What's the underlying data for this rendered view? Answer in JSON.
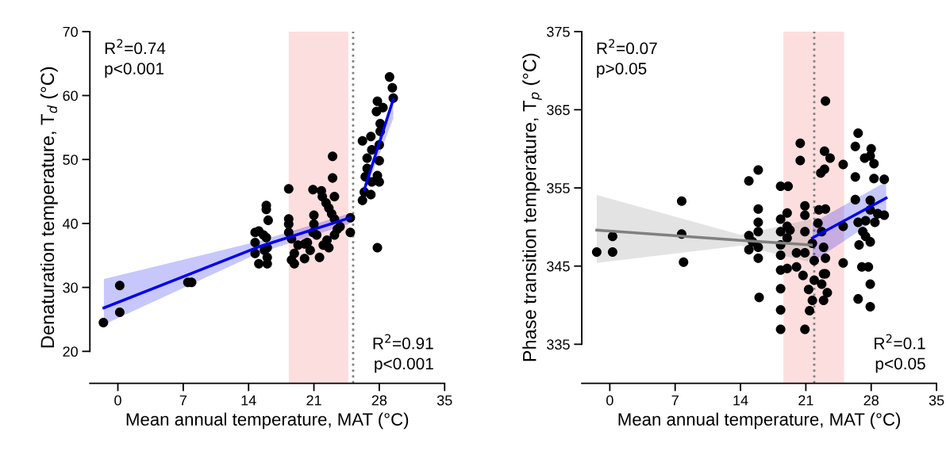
{
  "chart_data": [
    {
      "type": "scatter",
      "xlabel": "Mean annual temperature, MAT (°C)",
      "ylabel": "Denaturation temperature, T$_{d}$ (°C)",
      "xlim": [
        -3,
        35
      ],
      "xticks": [
        0,
        7,
        14,
        21,
        28,
        35
      ],
      "ylim": [
        15,
        70
      ],
      "yticks": [
        20,
        30,
        40,
        50,
        60,
        70
      ],
      "grid": false,
      "legend": false,
      "annotations": [
        "R$^{2}$=0.74\np<0.001",
        "R$^{2}$=0.91\np<0.001"
      ],
      "bands": [
        {
          "axis": "x",
          "from": 18.3,
          "to": 24.7,
          "label": null,
          "color": "#fddede"
        }
      ],
      "ref_lines": [
        {
          "axis": "x",
          "value": 25.2,
          "label": null,
          "color": "#808080",
          "line_style": "dotted"
        }
      ],
      "series": [
        {
          "color": "#000000",
          "marker": "circle",
          "x": [
            -1.55,
            0.2,
            0.2,
            7.5,
            7.9,
            14.7,
            15.1,
            14.7,
            14.7,
            15.1,
            16,
            16,
            15.7,
            15.9,
            15.9,
            15.9,
            16.1,
            15.6,
            16,
            18.3,
            18.3,
            18.3,
            18.3,
            18.6,
            18.6,
            18.9,
            18.9,
            19.3,
            20,
            20,
            20.6,
            20.9,
            21.8,
            21,
            21,
            21.3,
            21.6,
            21.9,
            22.3,
            22.6,
            22,
            22.4,
            22.9,
            23,
            23,
            23.2,
            23.2,
            23.2,
            23.5,
            23.8,
            22.6,
            20.9,
            20.3,
            24.9,
            24.9,
            26.2,
            27.1,
            26.2,
            26.4,
            27.1,
            26.7,
            26.7,
            26.5,
            27.2,
            27.8,
            27.7,
            28.4,
            28.1,
            28,
            28,
            27.8,
            28,
            27.8,
            29.1,
            29.4,
            29.5,
            27.2,
            28.1
          ],
          "values": [
            24.5,
            30.3,
            26.1,
            30.8,
            30.8,
            38.6,
            38.8,
            37.0,
            35.3,
            33.7,
            33.7,
            34.7,
            35.8,
            37.8,
            42.8,
            42.2,
            40.5,
            38.2,
            36.2,
            45.4,
            40.7,
            39.9,
            38.6,
            37.6,
            34.3,
            33.7,
            35.3,
            36.6,
            34.5,
            36.8,
            35.8,
            45.3,
            45.1,
            41.3,
            39.9,
            38.2,
            34.7,
            44.2,
            43.2,
            42.4,
            36.6,
            37.4,
            41.5,
            50.5,
            47.1,
            44.2,
            40.7,
            38.2,
            39.1,
            39.5,
            36.2,
            38.6,
            37.0,
            40.9,
            38.6,
            52.9,
            53.6,
            43.6,
            44.9,
            44.5,
            50.2,
            48.6,
            47.3,
            46.5,
            59.1,
            57.5,
            58.1,
            55.6,
            52.3,
            49.8,
            47.5,
            46.5,
            36.2,
            62.9,
            61.2,
            59.6,
            51.5,
            54.4
          ]
        },
        {
          "type": "line",
          "color": "#0000ee",
          "marker": "none",
          "x": [
            -1.5,
            15,
            24.9
          ],
          "values": [
            26.8,
            36.3,
            40.9
          ],
          "lower": [
            24.2,
            35.3,
            40.0
          ],
          "upper": [
            31.3,
            37.2,
            41.6
          ]
        },
        {
          "type": "line",
          "color": "#0000ee",
          "marker": "none",
          "x": [
            26.4,
            29.5
          ],
          "values": [
            45.3,
            59.4
          ],
          "lower": [
            44.6,
            56.4
          ],
          "upper": [
            46.0,
            60.2
          ]
        }
      ]
    },
    {
      "type": "scatter",
      "xlabel": "Mean annual temperature, MAT (°C)",
      "ylabel": "Phase transition temperature, T$_{p}$ (°C)",
      "xlim": [
        -3,
        35
      ],
      "xticks": [
        0,
        7,
        14,
        21,
        28,
        35
      ],
      "ylim": [
        330,
        375
      ],
      "yticks": [
        335,
        345,
        355,
        365,
        375
      ],
      "grid": false,
      "legend": false,
      "annotations": [
        "R$^{2}$=0.07\np>0.05",
        "R$^{2}$=0.1\np<0.05"
      ],
      "bands": [
        {
          "axis": "x",
          "from": 18.6,
          "to": 25.1,
          "label": null,
          "color": "#fddede"
        }
      ],
      "ref_lines": [
        {
          "axis": "x",
          "value": 21.9,
          "label": null,
          "color": "#808080",
          "line_style": "dotted"
        }
      ],
      "series": [
        {
          "color": "#000000",
          "marker": "circle",
          "x": [
            -1.4,
            0.3,
            0.3,
            7.7,
            7.7,
            7.9,
            14.9,
            15.9,
            15.9,
            15.9,
            15.9,
            14.9,
            14.9,
            15.9,
            15.9,
            16,
            15.3,
            18.3,
            19.1,
            18.3,
            18.3,
            18.3,
            18.3,
            18.3,
            18.3,
            18.3,
            18.3,
            19,
            19,
            19,
            19.3,
            19,
            20,
            20,
            20.4,
            20.4,
            20.9,
            20.9,
            20.9,
            20.9,
            20.7,
            20.9,
            21.3,
            21.4,
            21.7,
            21.7,
            21.9,
            21.9,
            22.3,
            22.4,
            22.7,
            22.9,
            22.9,
            22.7,
            22.9,
            23.1,
            23.1,
            23,
            23.6,
            23,
            22.6,
            23.1,
            23.1,
            23.3,
            25,
            25,
            25,
            26.3,
            26.3,
            26.3,
            26.6,
            26.6,
            26.7,
            26.6,
            27,
            27.1,
            27.4,
            27.3,
            28,
            27.9,
            28.3,
            27.9,
            27.9,
            27.9,
            27.7,
            27.9,
            27.9,
            28.3,
            28.4,
            28.7,
            29.4,
            29.4,
            27.4
          ],
          "values": [
            346.8,
            348.8,
            346.8,
            353.3,
            349.1,
            345.5,
            355.9,
            357.3,
            352.3,
            350.6,
            349.4,
            348.9,
            347.1,
            347.4,
            346.0,
            341.0,
            348.1,
            355.2,
            355.2,
            351.0,
            349.4,
            347.7,
            346.4,
            344.5,
            342.1,
            339.4,
            336.9,
            351.8,
            350.1,
            348.6,
            349.6,
            344.7,
            346.7,
            344.9,
            360.7,
            358.5,
            352.7,
            351.5,
            349.4,
            336.9,
            343.8,
            346.7,
            342.0,
            339.3,
            340.6,
            347.9,
            345.7,
            343.2,
            350.5,
            352.2,
            349.4,
            347.4,
            344.0,
            342.7,
            340.6,
            352.3,
            366.1,
            359.7,
            358.8,
            357.4,
            356.9,
            346.0,
            344.0,
            341.6,
            358.0,
            350.1,
            345.4,
            356.4,
            353.5,
            360.3,
            362.0,
            350.6,
            347.7,
            340.8,
            344.9,
            349.4,
            348.8,
            358.8,
            360.0,
            359.1,
            358.1,
            353.4,
            352.2,
            348.1,
            344.9,
            342.7,
            339.8,
            356.2,
            350.6,
            351.7,
            356.1,
            351.5,
            350.8
          ]
        },
        {
          "type": "line",
          "color": "#808080",
          "marker": "none",
          "x": [
            -1.4,
            14,
            21.6
          ],
          "values": [
            349.6,
            348.3,
            347.7
          ],
          "lower": [
            345.4,
            347.6,
            345.5
          ],
          "upper": [
            354.1,
            349.0,
            351.0
          ]
        },
        {
          "type": "line",
          "color": "#0000ee",
          "marker": "none",
          "x": [
            21.7,
            29.6
          ],
          "values": [
            348.6,
            353.7
          ],
          "lower": [
            345.5,
            351.8
          ],
          "upper": [
            350.5,
            355.8
          ]
        }
      ]
    }
  ]
}
